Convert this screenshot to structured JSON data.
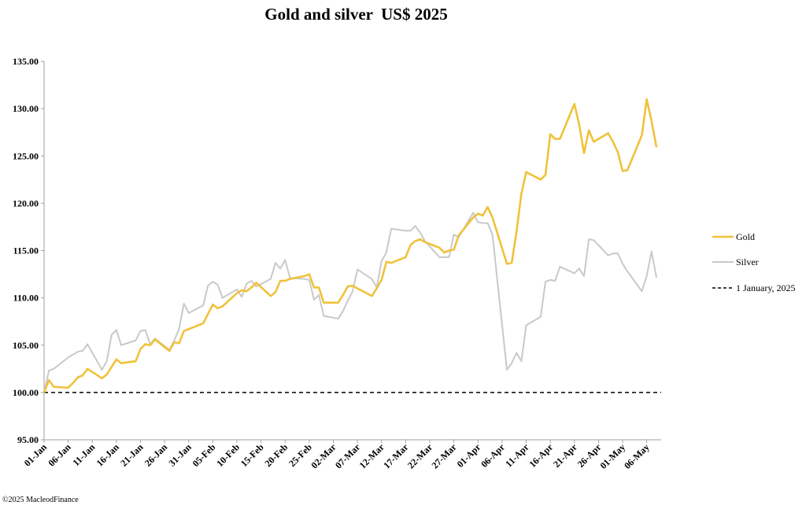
{
  "chart_data": {
    "type": "line",
    "title": "Gold and silver  US$ 2025",
    "xlabel": "",
    "ylabel": "",
    "ylim": [
      95,
      135
    ],
    "yticks": [
      "95.00",
      "100.00",
      "105.00",
      "110.00",
      "115.00",
      "120.00",
      "125.00",
      "130.00",
      "135.00"
    ],
    "xlim": [
      "2025-01-01",
      "2025-05-09"
    ],
    "xticks": [
      "01-Jan",
      "06-Jan",
      "11-Jan",
      "16-Jan",
      "21-Jan",
      "26-Jan",
      "31-Jan",
      "05-Feb",
      "10-Feb",
      "15-Feb",
      "20-Feb",
      "25-Feb",
      "02-Mar",
      "07-Mar",
      "12-Mar",
      "17-Mar",
      "22-Mar",
      "27-Mar",
      "01-Apr",
      "06-Apr",
      "11-Apr",
      "16-Apr",
      "21-Apr",
      "26-Apr",
      "01-May",
      "06-May"
    ],
    "grid": false,
    "legend_position": "right",
    "series": [
      {
        "name": "Gold",
        "color": "#f0c23b",
        "style": "solid",
        "points": [
          [
            "2025-01-01",
            100.0
          ],
          [
            "2025-01-02",
            101.3
          ],
          [
            "2025-01-03",
            100.6
          ],
          [
            "2025-01-06",
            100.5
          ],
          [
            "2025-01-07",
            101.0
          ],
          [
            "2025-01-08",
            101.6
          ],
          [
            "2025-01-09",
            101.8
          ],
          [
            "2025-01-10",
            102.5
          ],
          [
            "2025-01-13",
            101.5
          ],
          [
            "2025-01-14",
            101.9
          ],
          [
            "2025-01-15",
            102.7
          ],
          [
            "2025-01-16",
            103.5
          ],
          [
            "2025-01-17",
            103.1
          ],
          [
            "2025-01-20",
            103.3
          ],
          [
            "2025-01-21",
            104.6
          ],
          [
            "2025-01-22",
            105.1
          ],
          [
            "2025-01-23",
            105.0
          ],
          [
            "2025-01-24",
            105.6
          ],
          [
            "2025-01-27",
            104.4
          ],
          [
            "2025-01-28",
            105.3
          ],
          [
            "2025-01-29",
            105.2
          ],
          [
            "2025-01-30",
            106.5
          ],
          [
            "2025-01-31",
            106.7
          ],
          [
            "2025-02-03",
            107.3
          ],
          [
            "2025-02-04",
            108.3
          ],
          [
            "2025-02-05",
            109.3
          ],
          [
            "2025-02-06",
            108.9
          ],
          [
            "2025-02-07",
            109.1
          ],
          [
            "2025-02-10",
            110.5
          ],
          [
            "2025-02-11",
            110.8
          ],
          [
            "2025-02-12",
            110.7
          ],
          [
            "2025-02-13",
            111.1
          ],
          [
            "2025-02-14",
            111.6
          ],
          [
            "2025-02-17",
            110.2
          ],
          [
            "2025-02-18",
            110.6
          ],
          [
            "2025-02-19",
            111.8
          ],
          [
            "2025-02-20",
            111.8
          ],
          [
            "2025-02-21",
            112.0
          ],
          [
            "2025-02-24",
            112.3
          ],
          [
            "2025-02-25",
            112.5
          ],
          [
            "2025-02-26",
            111.1
          ],
          [
            "2025-02-27",
            111.1
          ],
          [
            "2025-02-28",
            109.5
          ],
          [
            "2025-03-03",
            109.5
          ],
          [
            "2025-03-04",
            110.3
          ],
          [
            "2025-03-05",
            111.2
          ],
          [
            "2025-03-06",
            111.3
          ],
          [
            "2025-03-07",
            111.0
          ],
          [
            "2025-03-10",
            110.2
          ],
          [
            "2025-03-11",
            111.0
          ],
          [
            "2025-03-12",
            111.9
          ],
          [
            "2025-03-13",
            113.8
          ],
          [
            "2025-03-14",
            113.7
          ],
          [
            "2025-03-17",
            114.3
          ],
          [
            "2025-03-18",
            115.6
          ],
          [
            "2025-03-19",
            116.0
          ],
          [
            "2025-03-20",
            116.2
          ],
          [
            "2025-03-21",
            115.9
          ],
          [
            "2025-03-24",
            115.3
          ],
          [
            "2025-03-25",
            114.8
          ],
          [
            "2025-03-26",
            115.0
          ],
          [
            "2025-03-27",
            115.1
          ],
          [
            "2025-03-28",
            116.6
          ],
          [
            "2025-03-31",
            118.5
          ],
          [
            "2025-04-01",
            118.9
          ],
          [
            "2025-04-02",
            118.7
          ],
          [
            "2025-04-03",
            119.6
          ],
          [
            "2025-04-04",
            118.5
          ],
          [
            "2025-04-07",
            113.6
          ],
          [
            "2025-04-08",
            113.7
          ],
          [
            "2025-04-09",
            117.0
          ],
          [
            "2025-04-10",
            121.0
          ],
          [
            "2025-04-11",
            123.3
          ],
          [
            "2025-04-14",
            122.5
          ],
          [
            "2025-04-15",
            123.0
          ],
          [
            "2025-04-16",
            127.3
          ],
          [
            "2025-04-17",
            126.8
          ],
          [
            "2025-04-18",
            126.8
          ],
          [
            "2025-04-21",
            130.5
          ],
          [
            "2025-04-22",
            128.3
          ],
          [
            "2025-04-23",
            125.3
          ],
          [
            "2025-04-24",
            127.7
          ],
          [
            "2025-04-25",
            126.5
          ],
          [
            "2025-04-28",
            127.4
          ],
          [
            "2025-04-29",
            126.5
          ],
          [
            "2025-04-30",
            125.4
          ],
          [
            "2025-05-01",
            123.4
          ],
          [
            "2025-05-02",
            123.5
          ],
          [
            "2025-05-05",
            127.2
          ],
          [
            "2025-05-06",
            131.0
          ],
          [
            "2025-05-07",
            128.7
          ],
          [
            "2025-05-08",
            126.0
          ]
        ]
      },
      {
        "name": "Silver",
        "color": "#c9c9c9",
        "style": "solid",
        "points": [
          [
            "2025-01-01",
            100.0
          ],
          [
            "2025-01-02",
            102.3
          ],
          [
            "2025-01-03",
            102.5
          ],
          [
            "2025-01-06",
            103.7
          ],
          [
            "2025-01-07",
            104.0
          ],
          [
            "2025-01-08",
            104.3
          ],
          [
            "2025-01-09",
            104.4
          ],
          [
            "2025-01-10",
            105.1
          ],
          [
            "2025-01-13",
            102.4
          ],
          [
            "2025-01-14",
            103.3
          ],
          [
            "2025-01-15",
            106.1
          ],
          [
            "2025-01-16",
            106.6
          ],
          [
            "2025-01-17",
            105.0
          ],
          [
            "2025-01-20",
            105.5
          ],
          [
            "2025-01-21",
            106.5
          ],
          [
            "2025-01-22",
            106.6
          ],
          [
            "2025-01-23",
            105.1
          ],
          [
            "2025-01-24",
            105.7
          ],
          [
            "2025-01-27",
            104.5
          ],
          [
            "2025-01-28",
            105.5
          ],
          [
            "2025-01-29",
            106.7
          ],
          [
            "2025-01-30",
            109.4
          ],
          [
            "2025-01-31",
            108.4
          ],
          [
            "2025-02-03",
            109.2
          ],
          [
            "2025-02-04",
            111.3
          ],
          [
            "2025-02-05",
            111.7
          ],
          [
            "2025-02-06",
            111.4
          ],
          [
            "2025-02-07",
            110.0
          ],
          [
            "2025-02-10",
            110.9
          ],
          [
            "2025-02-11",
            110.1
          ],
          [
            "2025-02-12",
            111.5
          ],
          [
            "2025-02-13",
            111.8
          ],
          [
            "2025-02-14",
            111.2
          ],
          [
            "2025-02-17",
            112.0
          ],
          [
            "2025-02-18",
            113.7
          ],
          [
            "2025-02-19",
            113.1
          ],
          [
            "2025-02-20",
            114.0
          ],
          [
            "2025-02-21",
            112.1
          ],
          [
            "2025-02-24",
            112.0
          ],
          [
            "2025-02-25",
            111.9
          ],
          [
            "2025-02-26",
            109.8
          ],
          [
            "2025-02-27",
            110.3
          ],
          [
            "2025-02-28",
            108.1
          ],
          [
            "2025-03-03",
            107.8
          ],
          [
            "2025-03-04",
            108.6
          ],
          [
            "2025-03-05",
            109.7
          ],
          [
            "2025-03-06",
            110.7
          ],
          [
            "2025-03-07",
            113.0
          ],
          [
            "2025-03-10",
            112.0
          ],
          [
            "2025-03-11",
            111.1
          ],
          [
            "2025-03-12",
            113.9
          ],
          [
            "2025-03-13",
            114.8
          ],
          [
            "2025-03-14",
            117.3
          ],
          [
            "2025-03-17",
            117.1
          ],
          [
            "2025-03-18",
            117.1
          ],
          [
            "2025-03-19",
            117.6
          ],
          [
            "2025-03-20",
            116.9
          ],
          [
            "2025-03-21",
            116.0
          ],
          [
            "2025-03-24",
            114.3
          ],
          [
            "2025-03-25",
            114.3
          ],
          [
            "2025-03-26",
            114.3
          ],
          [
            "2025-03-27",
            116.7
          ],
          [
            "2025-03-28",
            116.4
          ],
          [
            "2025-03-31",
            119.0
          ],
          [
            "2025-04-01",
            118.0
          ],
          [
            "2025-04-02",
            117.9
          ],
          [
            "2025-04-03",
            117.9
          ],
          [
            "2025-04-04",
            116.7
          ],
          [
            "2025-04-07",
            102.4
          ],
          [
            "2025-04-08",
            103.1
          ],
          [
            "2025-04-09",
            104.2
          ],
          [
            "2025-04-10",
            103.3
          ],
          [
            "2025-04-11",
            107.1
          ],
          [
            "2025-04-14",
            108.0
          ],
          [
            "2025-04-15",
            111.7
          ],
          [
            "2025-04-16",
            111.9
          ],
          [
            "2025-04-17",
            111.8
          ],
          [
            "2025-04-18",
            113.3
          ],
          [
            "2025-04-21",
            112.6
          ],
          [
            "2025-04-22",
            113.1
          ],
          [
            "2025-04-23",
            112.3
          ],
          [
            "2025-04-24",
            116.2
          ],
          [
            "2025-04-25",
            116.1
          ],
          [
            "2025-04-28",
            114.5
          ],
          [
            "2025-04-29",
            114.7
          ],
          [
            "2025-04-30",
            114.7
          ],
          [
            "2025-05-01",
            113.6
          ],
          [
            "2025-05-02",
            112.8
          ],
          [
            "2025-05-05",
            110.7
          ],
          [
            "2025-05-06",
            112.3
          ],
          [
            "2025-05-07",
            114.9
          ],
          [
            "2025-05-08",
            112.2
          ]
        ]
      }
    ],
    "reference_line": {
      "name": "1 January, 2025",
      "value": 100,
      "color": "#000000",
      "style": "dashed"
    }
  },
  "footer": {
    "copyright": "©2025 MacleodFinance"
  }
}
